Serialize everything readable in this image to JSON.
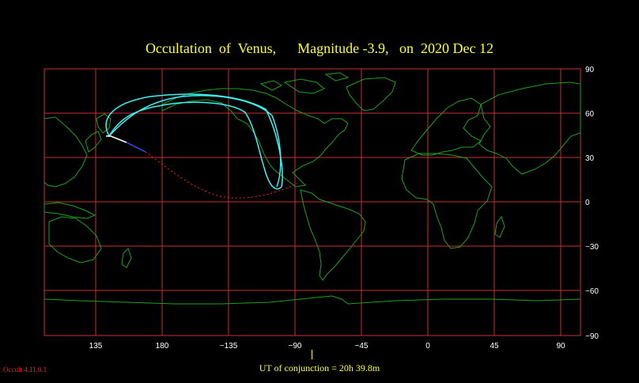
{
  "title": "Occultation  of  Venus,      Magnitude -3.9,   on  2020 Dec 12",
  "lon_ticks": [
    "135",
    "180",
    "−135",
    "−90",
    "−45",
    "0",
    "45",
    "90"
  ],
  "lat_ticks": [
    "90",
    "60",
    "30",
    "0",
    "−30",
    "−60",
    "−90"
  ],
  "footer": "UT of conjunction = 20h 39.8m",
  "version": "Occult 4.11.0.1",
  "colors": {
    "grid": "#c83232",
    "coastline": "#1fa01f",
    "path_cyan": "#3ff0f0",
    "path_white": "#ffffff",
    "dotted_red": "#ff2020",
    "title": "#ffff33"
  }
}
